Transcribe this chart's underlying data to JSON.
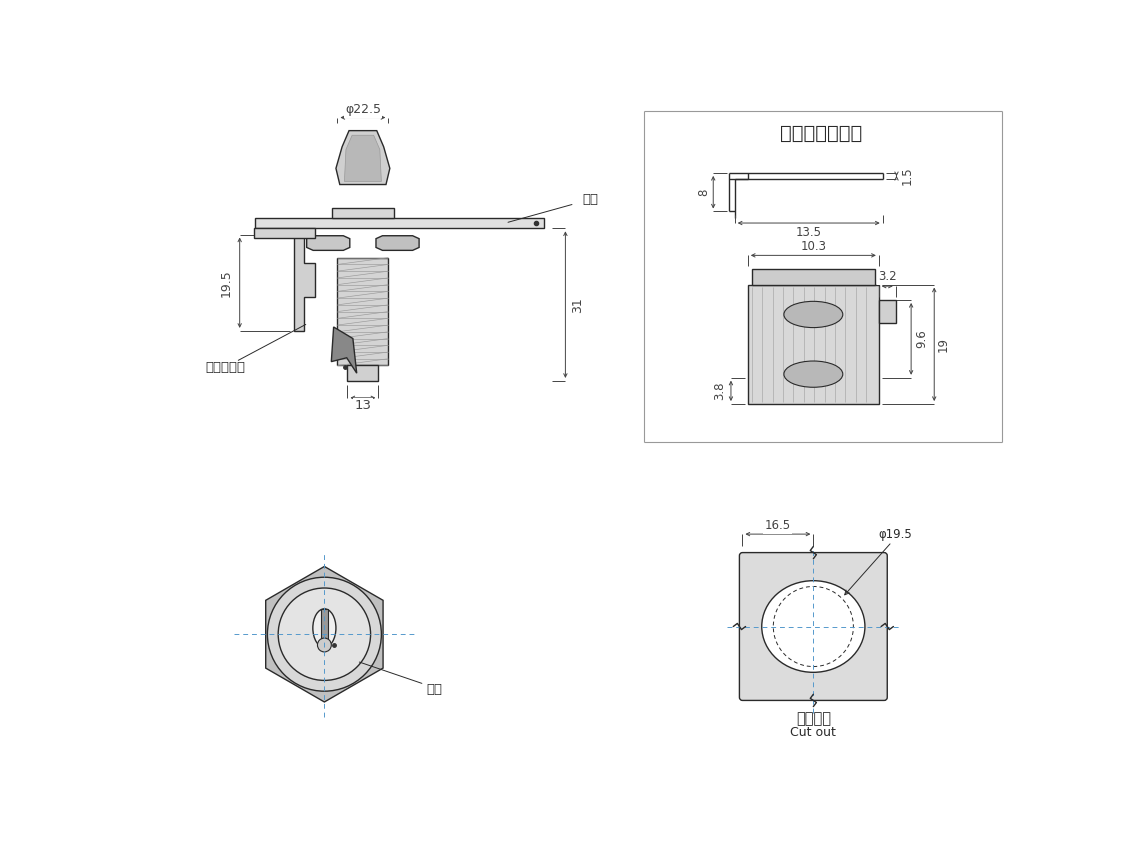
{
  "bg_color": "#ffffff",
  "lc": "#2a2a2a",
  "dc": "#444444",
  "title_text": "固定扣（选配）",
  "label_mendang": "门板",
  "label_huofu": "回复式锁门",
  "label_suoXin": "锁芯",
  "label_kaikong": "开孔尺寸",
  "label_cutout": "Cut out",
  "dim_225": "φ22.5",
  "dim_195v": "19.5",
  "dim_31": "31",
  "dim_13": "13",
  "dim_15": "1.5",
  "dim_8": "8",
  "dim_135": "13.5",
  "dim_103": "10.3",
  "dim_32": "3.2",
  "dim_38": "3.8",
  "dim_96": "9.6",
  "dim_19": "19",
  "dim_165": "16.5",
  "dim_195b": "φ19.5"
}
